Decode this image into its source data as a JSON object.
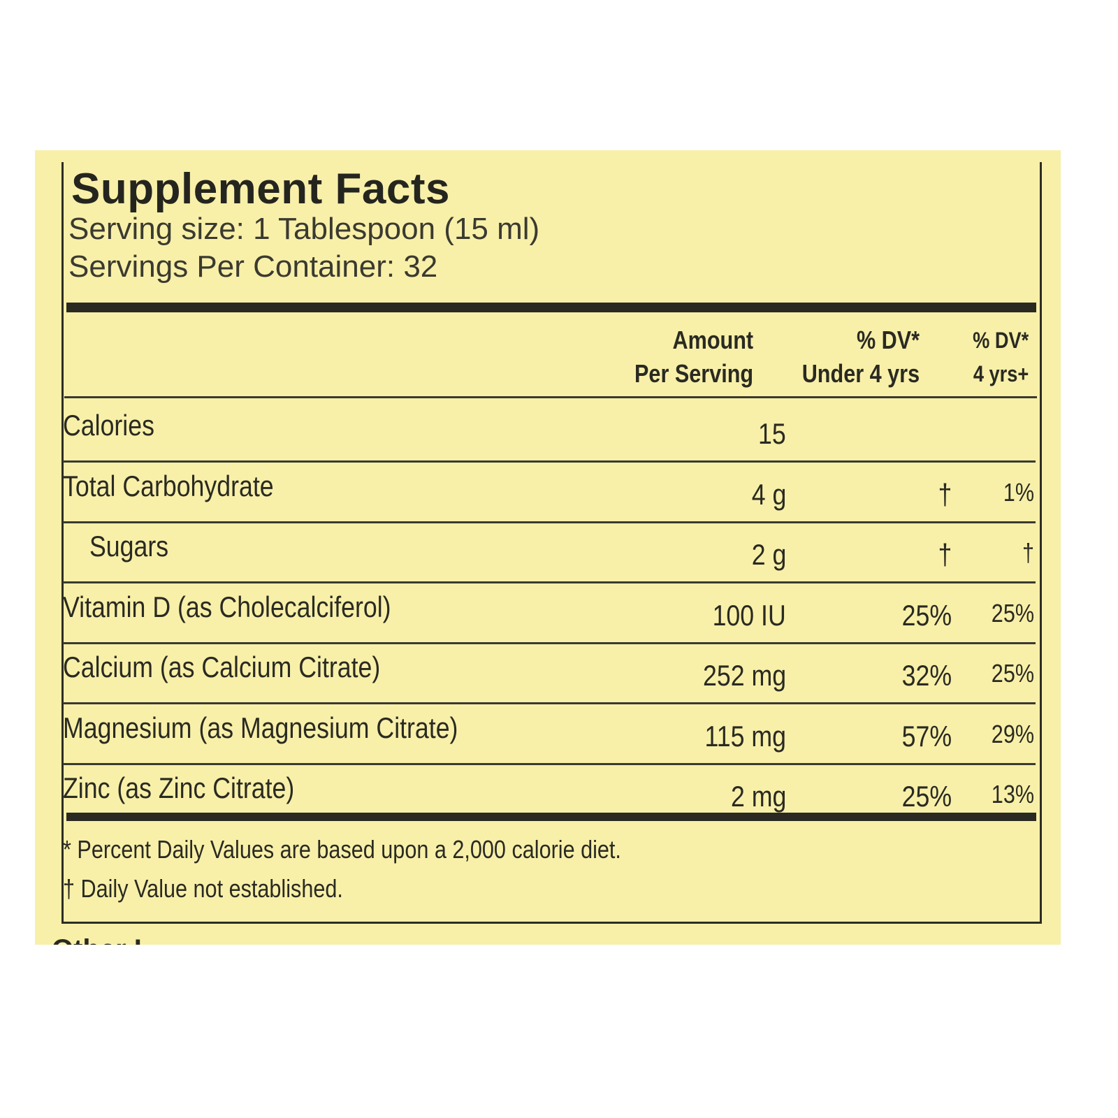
{
  "label": {
    "title": "Supplement Facts",
    "serving_size": "Serving size: 1 Tablespoon (15 ml)",
    "servings_per_container": "Servings Per Container: 32",
    "headers": {
      "amount_line1": "Amount",
      "amount_line2": "Per Serving",
      "dv_under4_line1": "% DV*",
      "dv_under4_line2": "Under 4 yrs",
      "dv_4plus_line1": "% DV*",
      "dv_4plus_line2": "4 yrs+"
    },
    "rows": [
      {
        "name": "Calories",
        "amount": "15",
        "dv_under4": "",
        "dv_4plus": ""
      },
      {
        "name": "Total Carbohydrate",
        "amount": "4 g",
        "dv_under4": "†",
        "dv_4plus": "1%"
      },
      {
        "name": "Sugars",
        "amount": "2 g",
        "dv_under4": "†",
        "dv_4plus": "†"
      },
      {
        "name": "Vitamin D (as Cholecalciferol)",
        "amount": "100 IU",
        "dv_under4": "25%",
        "dv_4plus": "25%"
      },
      {
        "name": "Calcium (as Calcium Citrate)",
        "amount": "252 mg",
        "dv_under4": "32%",
        "dv_4plus": "25%"
      },
      {
        "name": "Magnesium (as Magnesium Citrate)",
        "amount": "115 mg",
        "dv_under4": "57%",
        "dv_4plus": "29%"
      },
      {
        "name": "Zinc (as Zinc Citrate)",
        "amount": "2 mg",
        "dv_under4": "25%",
        "dv_4plus": "13%"
      }
    ],
    "footnote1": "* Percent Daily Values are based upon a 2,000 calorie diet.",
    "footnote2": "† Daily Value not established.",
    "cut_off_text": "Other I"
  },
  "colors": {
    "label_background": "#f8f0a9",
    "ink": "#2a2a22"
  }
}
